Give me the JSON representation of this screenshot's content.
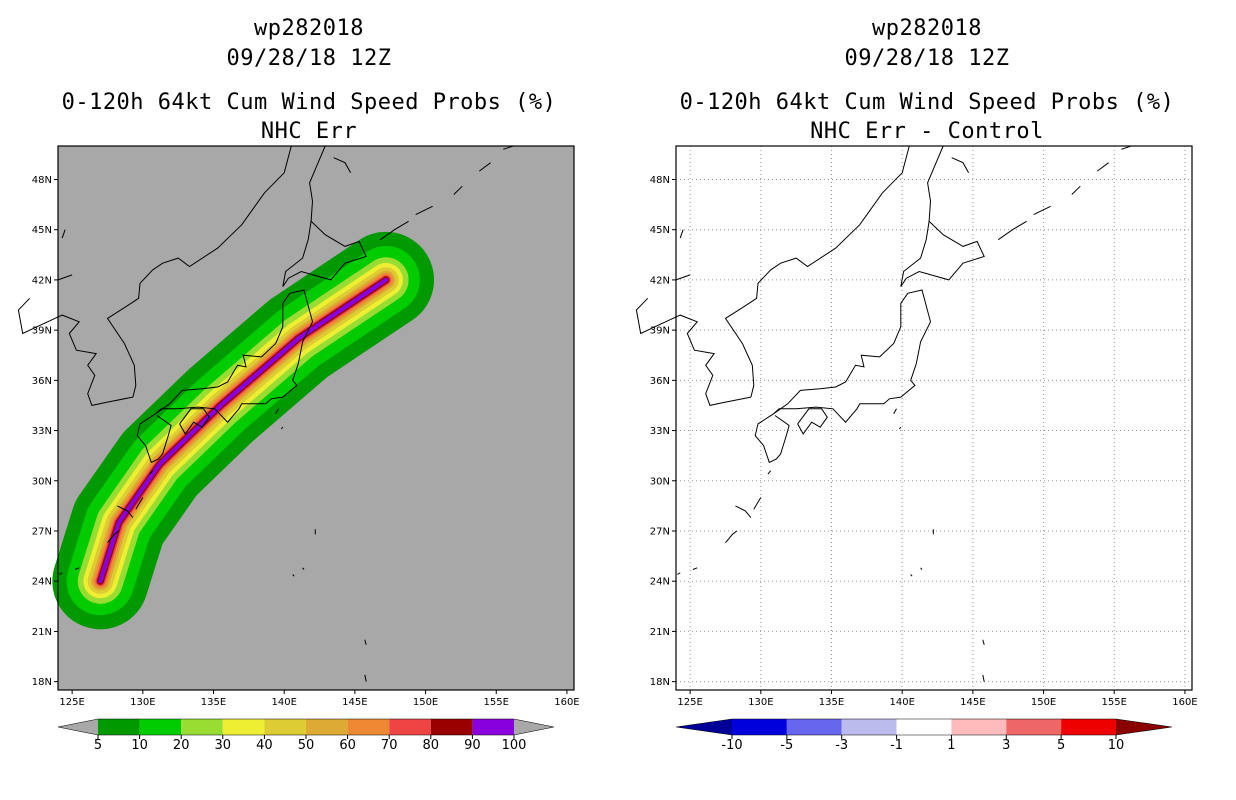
{
  "panels": [
    {
      "id": "left",
      "title_line1": "wp282018",
      "title_line2": "09/28/18 12Z",
      "title_line3": "0-120h 64kt Cum Wind Speed Probs (%)",
      "title_line4": "NHC Err",
      "background": "#a8a8a8"
    },
    {
      "id": "right",
      "title_line1": "wp282018",
      "title_line2": "09/28/18 12Z",
      "title_line3": "0-120h 64kt Cum Wind Speed Probs (%)",
      "title_line4": "NHC Err - Control",
      "background": "#ffffff"
    }
  ],
  "chart_data": [
    {
      "type": "heatmap",
      "title": "0-120h 64kt Cum Wind Speed Probs (%) NHC Err",
      "xlim": [
        124,
        160.5
      ],
      "ylim": [
        17.5,
        50
      ],
      "x_ticks": [
        125,
        130,
        135,
        140,
        145,
        150,
        155,
        160
      ],
      "x_tick_labels": [
        "125E",
        "130E",
        "135E",
        "140E",
        "145E",
        "150E",
        "155E",
        "160E"
      ],
      "y_ticks": [
        18,
        21,
        24,
        27,
        30,
        33,
        36,
        39,
        42,
        45,
        48
      ],
      "y_tick_labels": [
        "18N",
        "21N",
        "24N",
        "27N",
        "30N",
        "33N",
        "36N",
        "39N",
        "42N",
        "45N",
        "48N"
      ],
      "grid": false,
      "colorbar": {
        "labels": [
          "5",
          "10",
          "20",
          "30",
          "40",
          "50",
          "60",
          "70",
          "80",
          "90",
          "100"
        ],
        "colors": [
          "#009900",
          "#00cc00",
          "#99dd33",
          "#eeee33",
          "#ddcc33",
          "#ddaa33",
          "#ee8833",
          "#ee4444",
          "#990000",
          "#8800dd"
        ],
        "arrow_color": "#a8a8a8"
      },
      "track_center": [
        [
          127.0,
          24.0
        ],
        [
          128.3,
          27.5
        ],
        [
          131.2,
          31.0
        ],
        [
          135.5,
          34.5
        ],
        [
          141.0,
          38.5
        ],
        [
          147.2,
          42.0
        ]
      ],
      "bands": [
        {
          "min": 5,
          "half_width_deg": 3.4,
          "color": "#009900"
        },
        {
          "min": 10,
          "half_width_deg": 2.4,
          "color": "#00cc00"
        },
        {
          "min": 20,
          "half_width_deg": 1.6,
          "color": "#99dd33"
        },
        {
          "min": 30,
          "half_width_deg": 1.2,
          "color": "#eeee33"
        },
        {
          "min": 40,
          "half_width_deg": 0.9,
          "color": "#ddcc33"
        },
        {
          "min": 50,
          "half_width_deg": 0.65,
          "color": "#ddaa33"
        },
        {
          "min": 60,
          "half_width_deg": 0.5,
          "color": "#ee8833"
        },
        {
          "min": 70,
          "half_width_deg": 0.35,
          "color": "#ee4444"
        },
        {
          "min": 80,
          "half_width_deg": 0.25,
          "color": "#990000"
        },
        {
          "min": 90,
          "half_width_deg": 0.15,
          "color": "#8800dd"
        }
      ]
    },
    {
      "type": "heatmap",
      "title": "0-120h 64kt Cum Wind Speed Probs (%) NHC Err - Control",
      "xlim": [
        124,
        160.5
      ],
      "ylim": [
        17.5,
        50
      ],
      "x_ticks": [
        125,
        130,
        135,
        140,
        145,
        150,
        155,
        160
      ],
      "x_tick_labels": [
        "125E",
        "130E",
        "135E",
        "140E",
        "145E",
        "150E",
        "155E",
        "160E"
      ],
      "y_ticks": [
        18,
        21,
        24,
        27,
        30,
        33,
        36,
        39,
        42,
        45,
        48
      ],
      "y_tick_labels": [
        "18N",
        "21N",
        "24N",
        "27N",
        "30N",
        "33N",
        "36N",
        "39N",
        "42N",
        "45N",
        "48N"
      ],
      "grid": true,
      "colorbar": {
        "labels": [
          "-10",
          "-5",
          "-3",
          "-1",
          "1",
          "3",
          "5",
          "10"
        ],
        "colors": [
          "#0000dd",
          "#6666ee",
          "#bbbbee",
          "#ffffff",
          "#ffbbbb",
          "#ee6666",
          "#ee0000"
        ],
        "left_arrow_color": "#000099",
        "right_arrow_color": "#880000"
      }
    }
  ]
}
